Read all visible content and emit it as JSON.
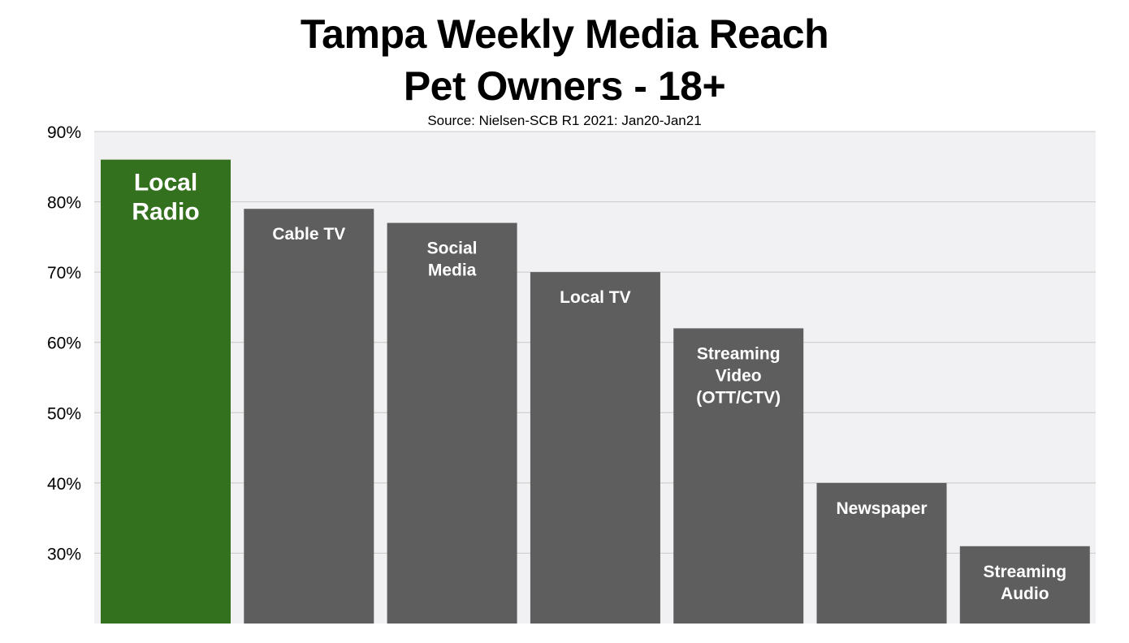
{
  "chart_data": {
    "type": "bar",
    "title": [
      "Tampa Weekly Media Reach",
      "Pet Owners - 18+"
    ],
    "subtitle": "Source: Nielsen-SCB R1 2021: Jan20-Jan21",
    "xlabel": "",
    "ylabel": "",
    "categories": [
      [
        "Local",
        "Radio"
      ],
      [
        "Cable TV"
      ],
      [
        "Social",
        "Media"
      ],
      [
        "Local TV"
      ],
      [
        "Streaming",
        "Video",
        "(OTT/CTV)"
      ],
      [
        "Newspaper"
      ],
      [
        "Streaming",
        "Audio"
      ]
    ],
    "values": [
      86,
      79,
      77,
      70,
      62,
      40,
      31
    ],
    "unit": "%",
    "ylim": [
      20,
      90
    ],
    "yticks": [
      30,
      40,
      50,
      60,
      70,
      80,
      90
    ],
    "ytick_labels": [
      "30%",
      "40%",
      "50%",
      "60%",
      "70%",
      "80%",
      "90%"
    ],
    "grid": true,
    "legend": "none",
    "colors": {
      "highlight": "#33711E",
      "default": "#5E5E5E",
      "plot_background": "#F1F1F3",
      "gridline": "#C8C8C8",
      "label_text": "#FFFFFF"
    },
    "highlight_index": 0
  }
}
